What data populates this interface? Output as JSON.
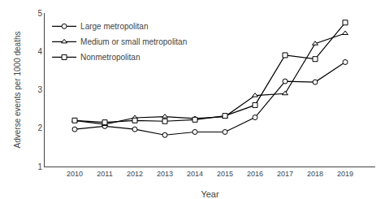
{
  "chart_data": {
    "type": "line",
    "xlabel": "Year",
    "ylabel": "Adverse events per 1000 deaths",
    "x": [
      2010,
      2011,
      2012,
      2013,
      2014,
      2015,
      2016,
      2017,
      2018,
      2019
    ],
    "xlim": [
      2009,
      2020
    ],
    "xticks": [
      2010,
      2011,
      2012,
      2013,
      2014,
      2015,
      2016,
      2017,
      2018,
      2019
    ],
    "ylim": [
      1,
      5
    ],
    "yticks": [
      1,
      2,
      3,
      4,
      5
    ],
    "grid": false,
    "legend": "upper left",
    "series": [
      {
        "name": "Large metropolitan",
        "color": "#000000",
        "marker": "circle",
        "values": [
          1.97,
          2.05,
          1.97,
          1.82,
          1.9,
          1.9,
          2.28,
          3.22,
          3.2,
          3.72
        ]
      },
      {
        "name": "Medium or small metropolitan",
        "color": "#000000",
        "marker": "triangle-up",
        "values": [
          2.2,
          2.1,
          2.27,
          2.3,
          2.25,
          2.3,
          2.85,
          2.9,
          4.2,
          4.47
        ]
      },
      {
        "name": "Nonmetropolitan",
        "color": "#000000",
        "marker": "square",
        "values": [
          2.2,
          2.15,
          2.2,
          2.18,
          2.22,
          2.32,
          2.6,
          3.9,
          3.8,
          4.75
        ]
      }
    ]
  }
}
